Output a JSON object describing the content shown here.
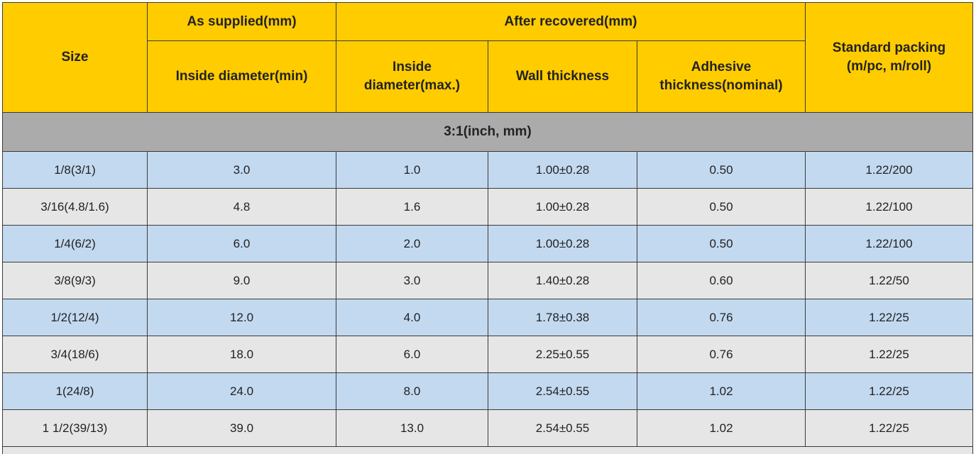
{
  "header": {
    "size": "Size",
    "as_supplied": "As supplied(mm)",
    "after_recovered": "After recovered(mm)",
    "standard_packing_line1": "Standard packing",
    "standard_packing_line2": "(m/pc, m/roll)",
    "inside_diameter_min": "Inside diameter(min)",
    "inside_diameter_max_line1": "Inside",
    "inside_diameter_max_line2": "diameter(max.)",
    "wall_thickness": "Wall thickness",
    "adhesive_line1": "Adhesive",
    "adhesive_line2": "thickness(nominal)"
  },
  "section_title": "3:1(inch, mm)",
  "rows": [
    {
      "size": "1/8(3/1)",
      "supplied_id": "3.0",
      "recovered_id": "1.0",
      "wall": "1.00±0.28",
      "adhesive": "0.50",
      "packing": "1.22/200"
    },
    {
      "size": "3/16(4.8/1.6)",
      "supplied_id": "4.8",
      "recovered_id": "1.6",
      "wall": "1.00±0.28",
      "adhesive": "0.50",
      "packing": "1.22/100"
    },
    {
      "size": "1/4(6/2)",
      "supplied_id": "6.0",
      "recovered_id": "2.0",
      "wall": "1.00±0.28",
      "adhesive": "0.50",
      "packing": "1.22/100"
    },
    {
      "size": "3/8(9/3)",
      "supplied_id": "9.0",
      "recovered_id": "3.0",
      "wall": "1.40±0.28",
      "adhesive": "0.60",
      "packing": "1.22/50"
    },
    {
      "size": "1/2(12/4)",
      "supplied_id": "12.0",
      "recovered_id": "4.0",
      "wall": "1.78±0.38",
      "adhesive": "0.76",
      "packing": "1.22/25"
    },
    {
      "size": "3/4(18/6)",
      "supplied_id": "18.0",
      "recovered_id": "6.0",
      "wall": "2.25±0.55",
      "adhesive": "0.76",
      "packing": "1.22/25"
    },
    {
      "size": "1(24/8)",
      "supplied_id": "24.0",
      "recovered_id": "8.0",
      "wall": "2.54±0.55",
      "adhesive": "1.02",
      "packing": "1.22/25"
    },
    {
      "size": "1 1/2(39/13)",
      "supplied_id": "39.0",
      "recovered_id": "13.0",
      "wall": "2.54±0.55",
      "adhesive": "1.02",
      "packing": "1.22/25"
    }
  ],
  "colors": {
    "header_bg": "#ffcc00",
    "section_bg": "#ababab",
    "row_blue": "#c3d9f0",
    "row_grey": "#e6e6e6",
    "border": "#3a3a3a"
  }
}
